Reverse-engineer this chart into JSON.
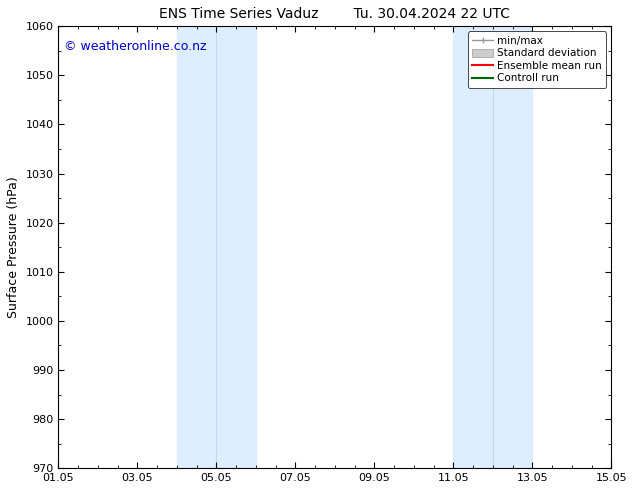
{
  "title_left": "ENS Time Series Vaduz",
  "title_right": "Tu. 30.04.2024 22 UTC",
  "ylabel": "Surface Pressure (hPa)",
  "ylim": [
    970,
    1060
  ],
  "yticks": [
    970,
    980,
    990,
    1000,
    1010,
    1020,
    1030,
    1040,
    1050,
    1060
  ],
  "xlim": [
    0,
    14
  ],
  "xtick_labels": [
    "01.05",
    "03.05",
    "05.05",
    "07.05",
    "09.05",
    "11.05",
    "13.05",
    "15.05"
  ],
  "xtick_positions": [
    0,
    2,
    4,
    6,
    8,
    10,
    12,
    14
  ],
  "shaded_bands": [
    {
      "x_start": 3.0,
      "x_end": 4.0
    },
    {
      "x_start": 4.0,
      "x_end": 5.0
    },
    {
      "x_start": 10.0,
      "x_end": 11.0
    },
    {
      "x_start": 11.0,
      "x_end": 12.0
    }
  ],
  "shaded_color": "#ddeeff",
  "band_divider_color": "#c0d8f0",
  "background_color": "#ffffff",
  "plot_bg_color": "#ffffff",
  "watermark_text": "© weatheronline.co.nz",
  "watermark_color": "#0000cc",
  "font_family": "DejaVu Sans",
  "title_fontsize": 10,
  "axis_label_fontsize": 9,
  "tick_fontsize": 8,
  "watermark_fontsize": 9,
  "legend_fontsize": 7.5,
  "minmax_color": "#999999",
  "std_facecolor": "#cccccc",
  "std_edgecolor": "#999999",
  "ens_color": "#ff0000",
  "ctrl_color": "#006600"
}
